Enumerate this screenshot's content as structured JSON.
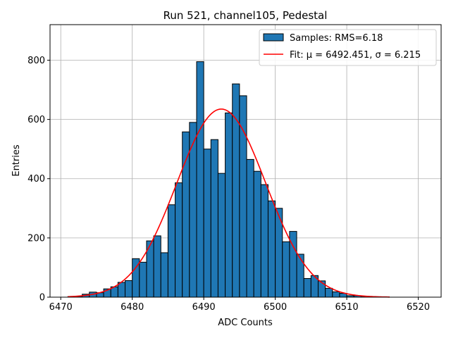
{
  "chart_data": {
    "type": "bar",
    "title": "Run 521, channel105, Pedestal",
    "xlabel": "ADC Counts",
    "ylabel": "Entries",
    "xlim": [
      6468.5,
      6523.2
    ],
    "ylim": [
      0,
      920
    ],
    "xticks": [
      6470,
      6480,
      6490,
      6500,
      6510,
      6520
    ],
    "yticks": [
      0,
      200,
      400,
      600,
      800
    ],
    "grid": true,
    "legend": {
      "placement": "top-right",
      "entries": [
        {
          "label": "Samples: RMS=6.18",
          "kind": "patch",
          "color": "#1f77b4"
        },
        {
          "label": "Fit: μ = 6492.451, σ = 6.215",
          "kind": "line",
          "color": "#ff0000"
        }
      ]
    },
    "histogram": {
      "name": "Samples: RMS=6.18",
      "color": "#1f77b4",
      "edge_color": "#000000",
      "bin_edges": [
        6471,
        6472,
        6473,
        6474,
        6475,
        6476,
        6477,
        6478,
        6479,
        6480,
        6481,
        6482,
        6483,
        6484,
        6485,
        6486,
        6487,
        6488,
        6489,
        6490,
        6491,
        6492,
        6493,
        6494,
        6495,
        6496,
        6497,
        6498,
        6499,
        6500,
        6501,
        6502,
        6503,
        6504,
        6505,
        6506,
        6507,
        6508,
        6509,
        6510,
        6511,
        6512,
        6513,
        6514,
        6515,
        6516
      ],
      "counts": [
        2,
        3,
        10,
        17,
        15,
        28,
        35,
        50,
        56,
        130,
        118,
        190,
        207,
        150,
        312,
        386,
        558,
        590,
        795,
        500,
        532,
        418,
        622,
        720,
        680,
        465,
        425,
        380,
        325,
        300,
        187,
        222,
        145,
        63,
        73,
        55,
        30,
        18,
        13,
        5,
        5,
        3,
        2,
        0,
        0
      ]
    },
    "fit": {
      "name": "Fit: μ = 6492.451, σ = 6.215",
      "color": "#ff0000",
      "mu": 6492.451,
      "sigma": 6.215,
      "amplitude": 635,
      "x_range": [
        6471,
        6516
      ]
    }
  }
}
